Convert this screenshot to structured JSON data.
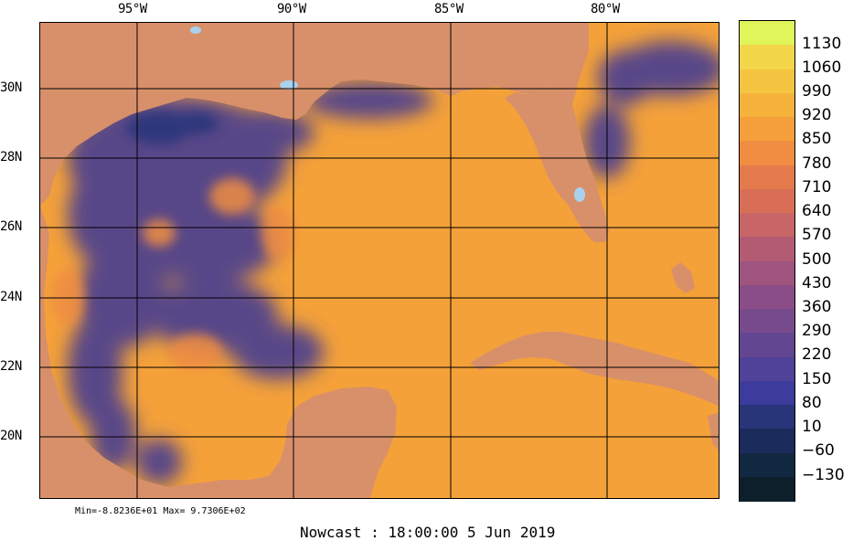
{
  "map": {
    "longitude_labels": [
      "95°W",
      "90°W",
      "85°W",
      "80°W"
    ],
    "latitude_labels": [
      "30N",
      "28N",
      "26N",
      "24N",
      "22N",
      "20N"
    ],
    "ocean_color": "#f4a13a",
    "land_color": "#d8906a",
    "water_body_color": "#a9d1ee",
    "low_value_color": "#4b3f8f"
  },
  "colorbar": {
    "labels": [
      "1130",
      "1060",
      "990",
      "920",
      "850",
      "780",
      "710",
      "640",
      "570",
      "500",
      "430",
      "360",
      "290",
      "220",
      "150",
      "80",
      "10",
      "−60",
      "−130"
    ],
    "colors": [
      "#dff55a",
      "#f4d64a",
      "#f5c541",
      "#f6b33c",
      "#f5a03a",
      "#f08d42",
      "#e47a4c",
      "#d96e57",
      "#c86567",
      "#b45b74",
      "#9f5480",
      "#8b4d87",
      "#774a8c",
      "#634691",
      "#4f4298",
      "#3d3b9b",
      "#283579",
      "#1a2b5c",
      "#112840",
      "#0c1f2a"
    ]
  },
  "stats": {
    "text": "Min=-8.8236E+01  Max= 9.7306E+02"
  },
  "caption": {
    "text": "Nowcast : 18:00:00   5 Jun 2019"
  }
}
